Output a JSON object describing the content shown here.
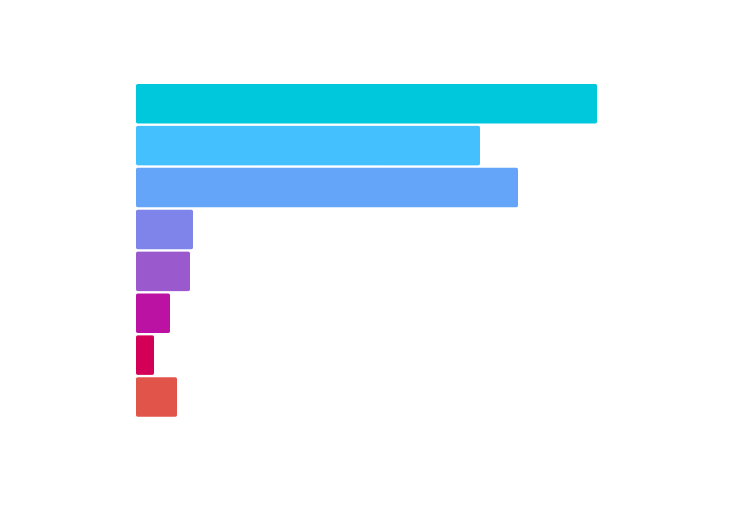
{
  "chart_data": {
    "type": "bar",
    "orientation": "horizontal",
    "values": [
      461,
      344,
      382,
      57,
      54,
      34,
      18,
      41
    ],
    "colors": [
      "#00c8dc",
      "#45c0ff",
      "#64a5fa",
      "#7e84ea",
      "#9a5acd",
      "#bb12a4",
      "#d40058",
      "#e0544a"
    ]
  }
}
